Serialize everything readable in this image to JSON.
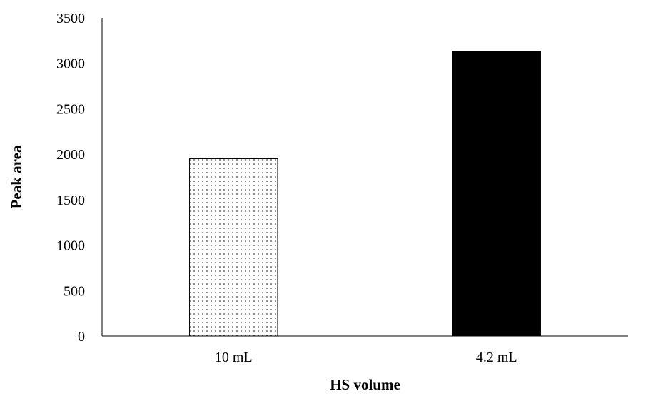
{
  "chart_data": {
    "type": "bar",
    "title": "",
    "xlabel": "HS volume",
    "ylabel": "Peak area",
    "ylim": [
      0,
      3500
    ],
    "yticks": [
      0,
      500,
      1000,
      1500,
      2000,
      2500,
      3000,
      3500
    ],
    "grid": false,
    "legend": "none",
    "categories": [
      "10 mL",
      "4.2 mL"
    ],
    "values": [
      1950,
      3130
    ],
    "bar_styles": [
      "dotted",
      "solid"
    ],
    "colors": {
      "dotted_fill": "#ffffff",
      "dots": "#000000",
      "solid_fill": "#000000",
      "axis": "#000000"
    }
  }
}
